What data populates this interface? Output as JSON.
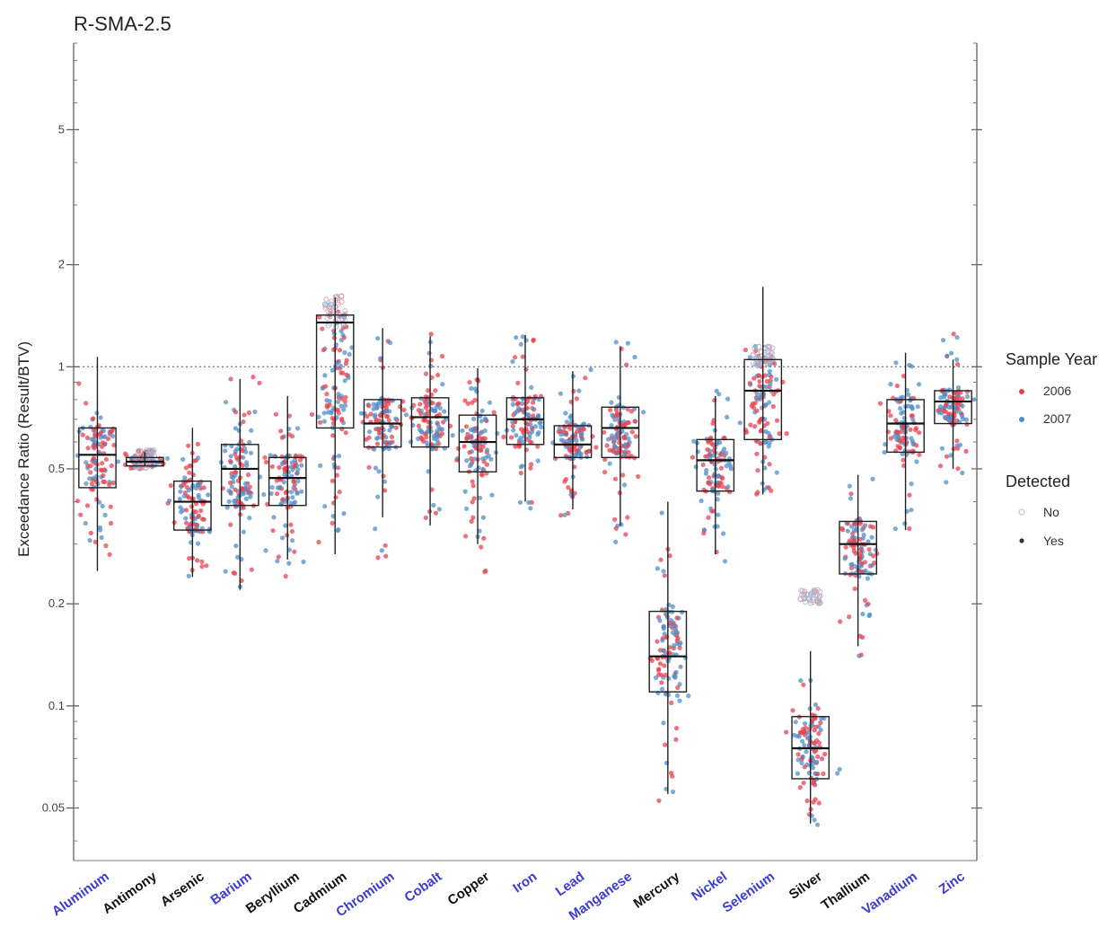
{
  "chart_data": {
    "type": "box",
    "title": "R-SMA-2.5",
    "xlabel": "",
    "ylabel": "Exceedance Ratio (Result/BTV)",
    "y_scale": "log",
    "ylim": [
      0.035,
      9.0
    ],
    "y_ticks": [
      {
        "value": 0.05,
        "label": "0.05"
      },
      {
        "value": 0.1,
        "label": "0.1"
      },
      {
        "value": 0.2,
        "label": "0.2"
      },
      {
        "value": 0.5,
        "label": "0.5"
      },
      {
        "value": 1,
        "label": "1"
      },
      {
        "value": 2,
        "label": "2"
      },
      {
        "value": 5,
        "label": "5"
      }
    ],
    "reference_line": {
      "value": 1,
      "style": "dotted"
    },
    "grid": false,
    "legend_position": "right",
    "categories": [
      {
        "name": "Aluminum",
        "label_color": "#3b3bd6",
        "q1": 0.44,
        "median": 0.55,
        "q3": 0.66,
        "wmin": 0.25,
        "wmax": 1.07,
        "spread_low": 0.26,
        "spread_high": 0.92,
        "nd_low": 0,
        "nd_high": 0
      },
      {
        "name": "Antimony",
        "label_color": "#111111",
        "q1": 0.51,
        "median": 0.525,
        "q3": 0.54,
        "wmin": 0.51,
        "wmax": 0.56,
        "spread_low": 0.5,
        "spread_high": 0.57,
        "nd_low": 0.5,
        "nd_high": 0.57
      },
      {
        "name": "Arsenic",
        "label_color": "#111111",
        "q1": 0.33,
        "median": 0.4,
        "q3": 0.46,
        "wmin": 0.24,
        "wmax": 0.66,
        "spread_low": 0.24,
        "spread_high": 0.62,
        "nd_low": 0,
        "nd_high": 0
      },
      {
        "name": "Barium",
        "label_color": "#3b3bd6",
        "q1": 0.39,
        "median": 0.5,
        "q3": 0.59,
        "wmin": 0.22,
        "wmax": 0.92,
        "spread_low": 0.22,
        "spread_high": 0.95,
        "nd_low": 0,
        "nd_high": 0
      },
      {
        "name": "Beryllium",
        "label_color": "#111111",
        "q1": 0.39,
        "median": 0.47,
        "q3": 0.54,
        "wmin": 0.27,
        "wmax": 0.82,
        "spread_low": 0.24,
        "spread_high": 0.8,
        "nd_low": 0,
        "nd_high": 0
      },
      {
        "name": "Cadmium",
        "label_color": "#111111",
        "q1": 0.66,
        "median": 1.35,
        "q3": 1.42,
        "wmin": 0.28,
        "wmax": 1.6,
        "spread_low": 0.28,
        "spread_high": 1.6,
        "nd_low": 1.3,
        "nd_high": 1.62
      },
      {
        "name": "Chromium",
        "label_color": "#3b3bd6",
        "q1": 0.58,
        "median": 0.68,
        "q3": 0.8,
        "wmin": 0.36,
        "wmax": 1.3,
        "spread_low": 0.26,
        "spread_high": 1.35,
        "nd_low": 0,
        "nd_high": 0
      },
      {
        "name": "Cobalt",
        "label_color": "#3b3bd6",
        "q1": 0.58,
        "median": 0.71,
        "q3": 0.81,
        "wmin": 0.34,
        "wmax": 1.23,
        "spread_low": 0.34,
        "spread_high": 1.25,
        "nd_low": 0,
        "nd_high": 0
      },
      {
        "name": "Copper",
        "label_color": "#111111",
        "q1": 0.49,
        "median": 0.6,
        "q3": 0.72,
        "wmin": 0.3,
        "wmax": 0.99,
        "spread_low": 0.24,
        "spread_high": 1.0,
        "nd_low": 0,
        "nd_high": 0
      },
      {
        "name": "Iron",
        "label_color": "#3b3bd6",
        "q1": 0.59,
        "median": 0.7,
        "q3": 0.81,
        "wmin": 0.4,
        "wmax": 1.24,
        "spread_low": 0.38,
        "spread_high": 1.25,
        "nd_low": 0,
        "nd_high": 0
      },
      {
        "name": "Lead",
        "label_color": "#3b3bd6",
        "q1": 0.54,
        "median": 0.59,
        "q3": 0.67,
        "wmin": 0.38,
        "wmax": 0.97,
        "spread_low": 0.36,
        "spread_high": 0.99,
        "nd_low": 0,
        "nd_high": 0
      },
      {
        "name": "Manganese",
        "label_color": "#3b3bd6",
        "q1": 0.54,
        "median": 0.66,
        "q3": 0.76,
        "wmin": 0.34,
        "wmax": 1.15,
        "spread_low": 0.3,
        "spread_high": 1.2,
        "nd_low": 0,
        "nd_high": 0
      },
      {
        "name": "Mercury",
        "label_color": "#111111",
        "q1": 0.11,
        "median": 0.14,
        "q3": 0.19,
        "wmin": 0.055,
        "wmax": 0.4,
        "spread_low": 0.05,
        "spread_high": 0.4,
        "nd_low": 0,
        "nd_high": 0
      },
      {
        "name": "Nickel",
        "label_color": "#3b3bd6",
        "q1": 0.43,
        "median": 0.53,
        "q3": 0.61,
        "wmin": 0.28,
        "wmax": 0.82,
        "spread_low": 0.25,
        "spread_high": 0.85,
        "nd_low": 0,
        "nd_high": 0
      },
      {
        "name": "Selenium",
        "label_color": "#3b3bd6",
        "q1": 0.61,
        "median": 0.85,
        "q3": 1.05,
        "wmin": 0.42,
        "wmax": 1.72,
        "spread_low": 0.42,
        "spread_high": 1.15,
        "nd_low": 1.0,
        "nd_high": 1.15
      },
      {
        "name": "Silver",
        "label_color": "#111111",
        "q1": 0.061,
        "median": 0.075,
        "q3": 0.093,
        "wmin": 0.045,
        "wmax": 0.145,
        "spread_low": 0.044,
        "spread_high": 0.12,
        "nd_low": 0.2,
        "nd_high": 0.22
      },
      {
        "name": "Thallium",
        "label_color": "#111111",
        "q1": 0.245,
        "median": 0.3,
        "q3": 0.35,
        "wmin": 0.15,
        "wmax": 0.48,
        "spread_low": 0.14,
        "spread_high": 0.48,
        "nd_low": 0,
        "nd_high": 0
      },
      {
        "name": "Vanadium",
        "label_color": "#3b3bd6",
        "q1": 0.56,
        "median": 0.68,
        "q3": 0.8,
        "wmin": 0.33,
        "wmax": 1.1,
        "spread_low": 0.33,
        "spread_high": 1.1,
        "nd_low": 0,
        "nd_high": 0
      },
      {
        "name": "Zinc",
        "label_color": "#3b3bd6",
        "q1": 0.68,
        "median": 0.79,
        "q3": 0.85,
        "wmin": 0.5,
        "wmax": 1.05,
        "spread_low": 0.45,
        "spread_high": 1.25,
        "nd_low": 0,
        "nd_high": 0
      }
    ],
    "legend": {
      "sample_year_title": "Sample Year",
      "years": [
        {
          "label": "2006",
          "color": "#e8414f"
        },
        {
          "label": "2007",
          "color": "#4f8fc9"
        }
      ],
      "detected_title": "Detected",
      "detected": [
        {
          "label": "No",
          "style": "open"
        },
        {
          "label": "Yes",
          "style": "filled"
        }
      ]
    }
  }
}
